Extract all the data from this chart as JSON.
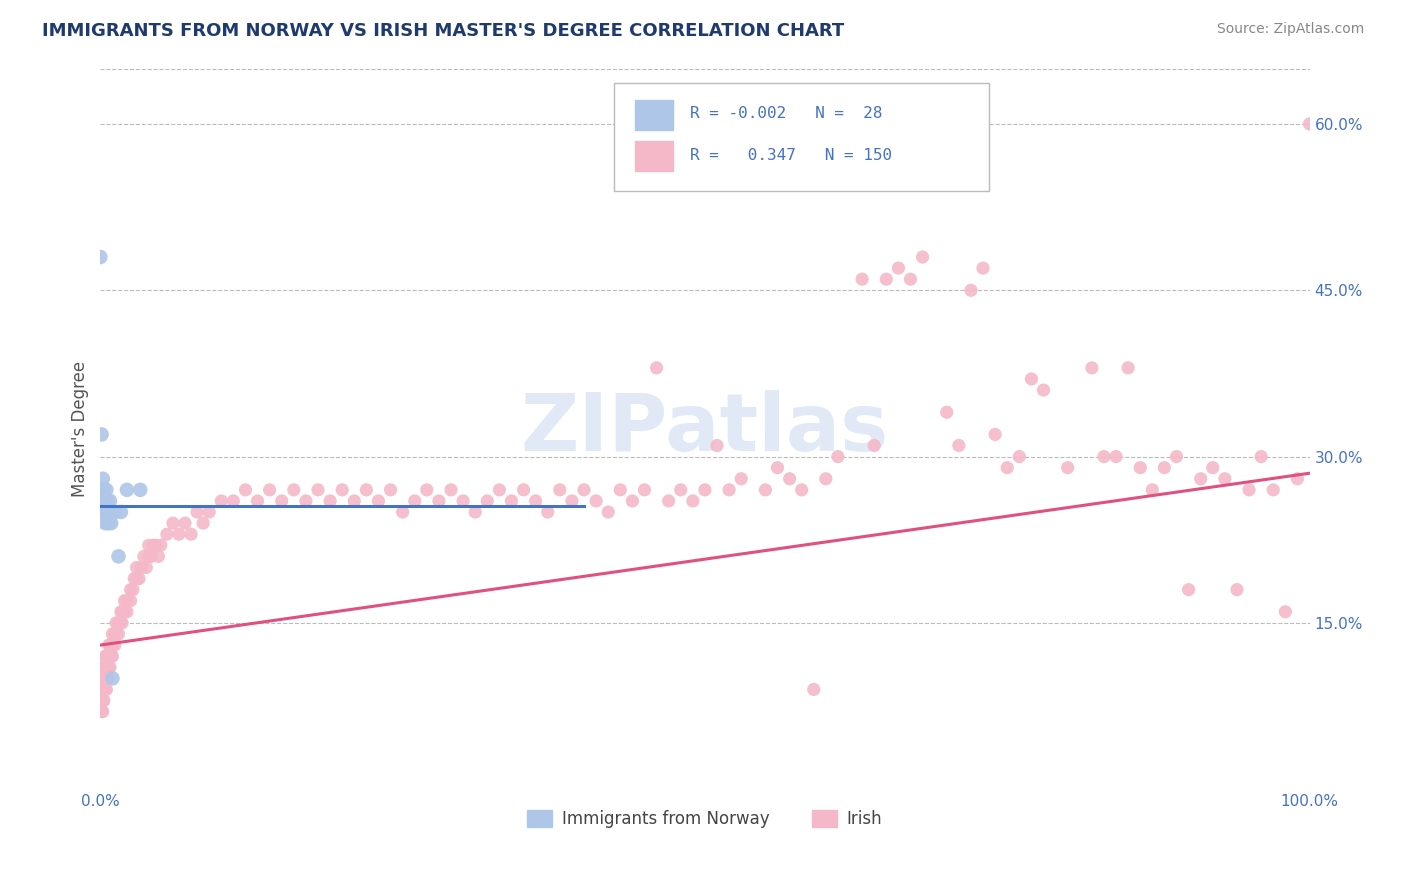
{
  "title": "IMMIGRANTS FROM NORWAY VS IRISH MASTER'S DEGREE CORRELATION CHART",
  "source": "Source: ZipAtlas.com",
  "ylabel": "Master's Degree",
  "xlim": [
    0.0,
    1.0
  ],
  "ylim": [
    0.0,
    0.65
  ],
  "ytick_labels": [
    "15.0%",
    "30.0%",
    "45.0%",
    "60.0%"
  ],
  "ytick_values": [
    0.15,
    0.3,
    0.45,
    0.6
  ],
  "legend_R_N": [
    {
      "R": "-0.002",
      "N": "28",
      "color": "#aec6e8"
    },
    {
      "R": "0.347",
      "N": "150",
      "color": "#f4b8c8"
    }
  ],
  "legend_entries": [
    {
      "label": "Immigrants from Norway",
      "color": "#aec6e8"
    },
    {
      "label": "Irish",
      "color": "#f4b8c8"
    }
  ],
  "norway_scatter": [
    [
      0.0,
      0.48
    ],
    [
      0.001,
      0.32
    ],
    [
      0.002,
      0.28
    ],
    [
      0.002,
      0.27
    ],
    [
      0.003,
      0.26
    ],
    [
      0.003,
      0.25
    ],
    [
      0.003,
      0.27
    ],
    [
      0.004,
      0.26
    ],
    [
      0.004,
      0.25
    ],
    [
      0.004,
      0.24
    ],
    [
      0.005,
      0.26
    ],
    [
      0.005,
      0.27
    ],
    [
      0.005,
      0.25
    ],
    [
      0.006,
      0.24
    ],
    [
      0.006,
      0.25
    ],
    [
      0.006,
      0.26
    ],
    [
      0.007,
      0.24
    ],
    [
      0.007,
      0.25
    ],
    [
      0.008,
      0.25
    ],
    [
      0.008,
      0.26
    ],
    [
      0.009,
      0.24
    ],
    [
      0.009,
      0.25
    ],
    [
      0.01,
      0.1
    ],
    [
      0.012,
      0.25
    ],
    [
      0.015,
      0.21
    ],
    [
      0.017,
      0.25
    ],
    [
      0.022,
      0.27
    ],
    [
      0.033,
      0.27
    ]
  ],
  "irish_scatter": [
    [
      0.001,
      0.08
    ],
    [
      0.001,
      0.09
    ],
    [
      0.001,
      0.07
    ],
    [
      0.001,
      0.1
    ],
    [
      0.002,
      0.09
    ],
    [
      0.002,
      0.1
    ],
    [
      0.002,
      0.08
    ],
    [
      0.002,
      0.11
    ],
    [
      0.002,
      0.07
    ],
    [
      0.003,
      0.1
    ],
    [
      0.003,
      0.09
    ],
    [
      0.003,
      0.11
    ],
    [
      0.003,
      0.08
    ],
    [
      0.003,
      0.1
    ],
    [
      0.004,
      0.11
    ],
    [
      0.004,
      0.1
    ],
    [
      0.004,
      0.09
    ],
    [
      0.004,
      0.12
    ],
    [
      0.005,
      0.11
    ],
    [
      0.005,
      0.1
    ],
    [
      0.005,
      0.12
    ],
    [
      0.005,
      0.09
    ],
    [
      0.005,
      0.1
    ],
    [
      0.006,
      0.11
    ],
    [
      0.006,
      0.12
    ],
    [
      0.006,
      0.1
    ],
    [
      0.006,
      0.11
    ],
    [
      0.007,
      0.12
    ],
    [
      0.007,
      0.11
    ],
    [
      0.007,
      0.13
    ],
    [
      0.008,
      0.12
    ],
    [
      0.008,
      0.11
    ],
    [
      0.008,
      0.13
    ],
    [
      0.009,
      0.12
    ],
    [
      0.009,
      0.13
    ],
    [
      0.01,
      0.14
    ],
    [
      0.01,
      0.12
    ],
    [
      0.01,
      0.13
    ],
    [
      0.012,
      0.14
    ],
    [
      0.012,
      0.13
    ],
    [
      0.013,
      0.14
    ],
    [
      0.013,
      0.15
    ],
    [
      0.015,
      0.14
    ],
    [
      0.015,
      0.15
    ],
    [
      0.016,
      0.15
    ],
    [
      0.017,
      0.16
    ],
    [
      0.018,
      0.15
    ],
    [
      0.018,
      0.16
    ],
    [
      0.02,
      0.16
    ],
    [
      0.02,
      0.17
    ],
    [
      0.022,
      0.17
    ],
    [
      0.022,
      0.16
    ],
    [
      0.025,
      0.18
    ],
    [
      0.025,
      0.17
    ],
    [
      0.027,
      0.18
    ],
    [
      0.028,
      0.19
    ],
    [
      0.03,
      0.19
    ],
    [
      0.03,
      0.2
    ],
    [
      0.032,
      0.19
    ],
    [
      0.034,
      0.2
    ],
    [
      0.036,
      0.21
    ],
    [
      0.038,
      0.2
    ],
    [
      0.04,
      0.21
    ],
    [
      0.04,
      0.22
    ],
    [
      0.042,
      0.21
    ],
    [
      0.044,
      0.22
    ],
    [
      0.046,
      0.22
    ],
    [
      0.048,
      0.21
    ],
    [
      0.05,
      0.22
    ],
    [
      0.055,
      0.23
    ],
    [
      0.06,
      0.24
    ],
    [
      0.065,
      0.23
    ],
    [
      0.07,
      0.24
    ],
    [
      0.075,
      0.23
    ],
    [
      0.08,
      0.25
    ],
    [
      0.085,
      0.24
    ],
    [
      0.09,
      0.25
    ],
    [
      0.1,
      0.26
    ],
    [
      0.11,
      0.26
    ],
    [
      0.12,
      0.27
    ],
    [
      0.13,
      0.26
    ],
    [
      0.14,
      0.27
    ],
    [
      0.15,
      0.26
    ],
    [
      0.16,
      0.27
    ],
    [
      0.17,
      0.26
    ],
    [
      0.18,
      0.27
    ],
    [
      0.19,
      0.26
    ],
    [
      0.2,
      0.27
    ],
    [
      0.21,
      0.26
    ],
    [
      0.22,
      0.27
    ],
    [
      0.23,
      0.26
    ],
    [
      0.24,
      0.27
    ],
    [
      0.25,
      0.25
    ],
    [
      0.26,
      0.26
    ],
    [
      0.27,
      0.27
    ],
    [
      0.28,
      0.26
    ],
    [
      0.29,
      0.27
    ],
    [
      0.3,
      0.26
    ],
    [
      0.31,
      0.25
    ],
    [
      0.32,
      0.26
    ],
    [
      0.33,
      0.27
    ],
    [
      0.34,
      0.26
    ],
    [
      0.35,
      0.27
    ],
    [
      0.36,
      0.26
    ],
    [
      0.37,
      0.25
    ],
    [
      0.38,
      0.27
    ],
    [
      0.39,
      0.26
    ],
    [
      0.4,
      0.27
    ],
    [
      0.41,
      0.26
    ],
    [
      0.42,
      0.25
    ],
    [
      0.43,
      0.27
    ],
    [
      0.44,
      0.26
    ],
    [
      0.45,
      0.27
    ],
    [
      0.46,
      0.38
    ],
    [
      0.47,
      0.26
    ],
    [
      0.48,
      0.27
    ],
    [
      0.49,
      0.26
    ],
    [
      0.5,
      0.27
    ],
    [
      0.51,
      0.31
    ],
    [
      0.52,
      0.27
    ],
    [
      0.53,
      0.28
    ],
    [
      0.55,
      0.27
    ],
    [
      0.56,
      0.29
    ],
    [
      0.57,
      0.28
    ],
    [
      0.58,
      0.27
    ],
    [
      0.59,
      0.09
    ],
    [
      0.6,
      0.28
    ],
    [
      0.61,
      0.3
    ],
    [
      0.63,
      0.46
    ],
    [
      0.64,
      0.31
    ],
    [
      0.65,
      0.46
    ],
    [
      0.66,
      0.47
    ],
    [
      0.67,
      0.46
    ],
    [
      0.68,
      0.48
    ],
    [
      0.7,
      0.34
    ],
    [
      0.71,
      0.31
    ],
    [
      0.72,
      0.45
    ],
    [
      0.73,
      0.47
    ],
    [
      0.74,
      0.32
    ],
    [
      0.75,
      0.29
    ],
    [
      0.76,
      0.3
    ],
    [
      0.77,
      0.37
    ],
    [
      0.78,
      0.36
    ],
    [
      0.8,
      0.29
    ],
    [
      0.82,
      0.38
    ],
    [
      0.83,
      0.3
    ],
    [
      0.84,
      0.3
    ],
    [
      0.85,
      0.38
    ],
    [
      0.86,
      0.29
    ],
    [
      0.87,
      0.27
    ],
    [
      0.88,
      0.29
    ],
    [
      0.89,
      0.3
    ],
    [
      0.9,
      0.18
    ],
    [
      0.91,
      0.28
    ],
    [
      0.92,
      0.29
    ],
    [
      0.93,
      0.28
    ],
    [
      0.94,
      0.18
    ],
    [
      0.95,
      0.27
    ],
    [
      0.96,
      0.3
    ],
    [
      0.97,
      0.27
    ],
    [
      0.98,
      0.16
    ],
    [
      0.99,
      0.28
    ],
    [
      1.0,
      0.6
    ]
  ],
  "norway_line": {
    "x0": 0.0,
    "x1": 0.4,
    "y0": 0.255,
    "y1": 0.255
  },
  "irish_line": {
    "x0": 0.0,
    "x1": 1.0,
    "y0": 0.13,
    "y1": 0.285
  },
  "norway_line_color": "#4472c4",
  "irish_line_color": "#e05080",
  "scatter_norway_color": "#aec6e8",
  "scatter_irish_color": "#f4b8c8",
  "watermark_text": "ZIPatlas",
  "background_color": "#ffffff",
  "grid_color": "#bbbbbb",
  "title_color": "#1e3a6e",
  "axis_label_color": "#555555",
  "tick_color": "#4472c4",
  "source_color": "#888888",
  "right_ytick_color": "#4472c4"
}
